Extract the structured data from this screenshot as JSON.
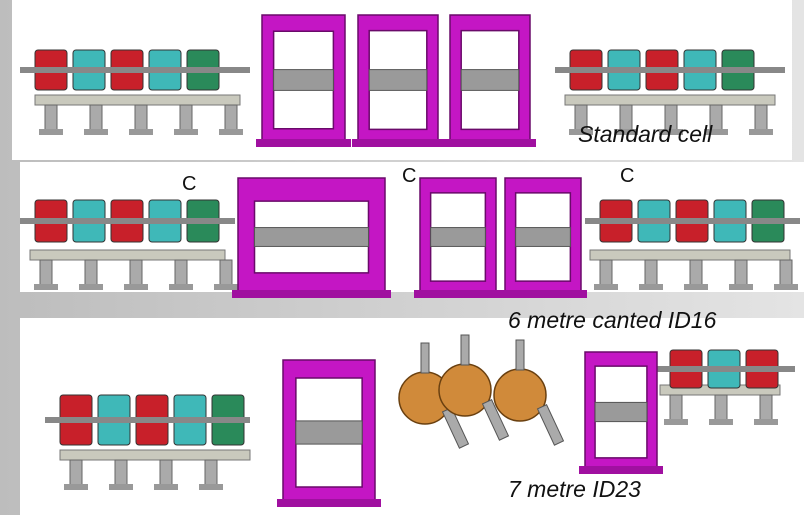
{
  "rows": [
    {
      "label": "Standard cell"
    },
    {
      "label": "6 metre canted ID16",
      "markers": [
        "C",
        "C",
        "C"
      ]
    },
    {
      "label": "7 metre ID23"
    }
  ]
}
